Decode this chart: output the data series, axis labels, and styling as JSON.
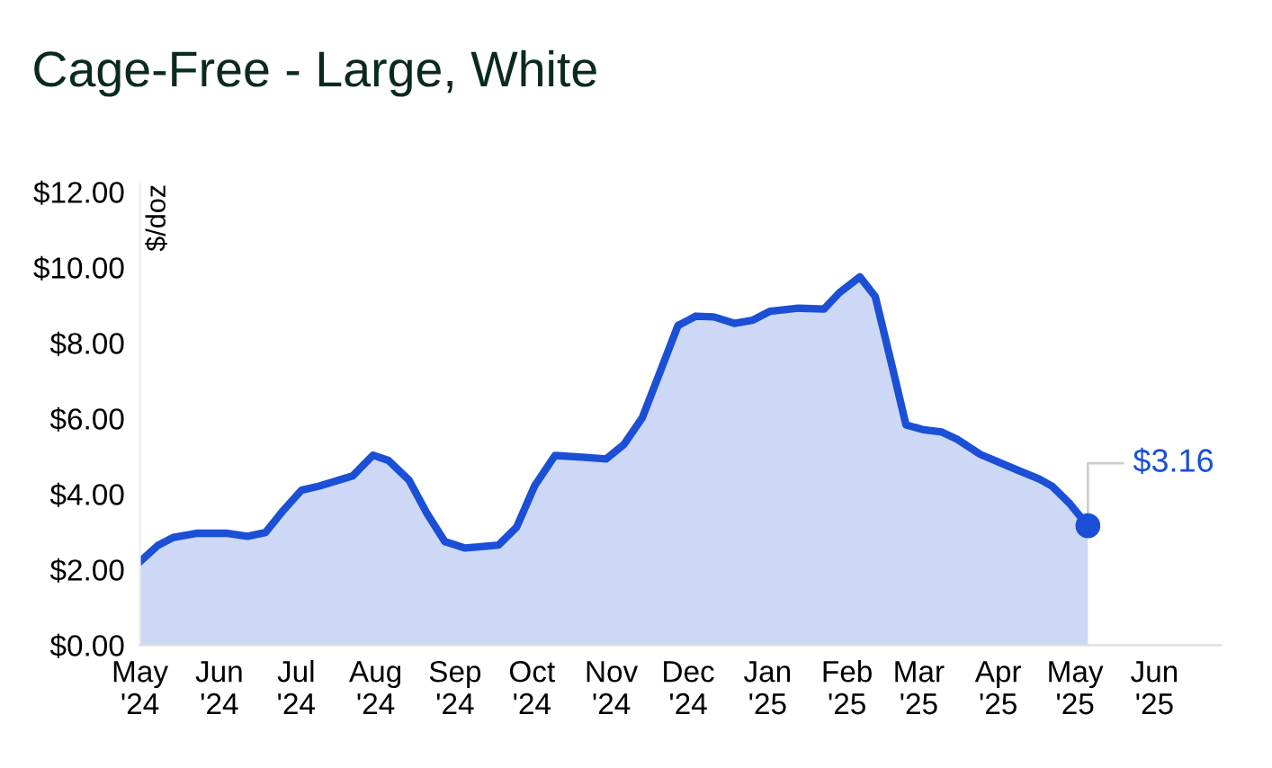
{
  "chart_data": {
    "type": "area",
    "title": "Cage-Free - Large, White",
    "ylabel": "$/doz",
    "x": [
      "2024-05-01",
      "2024-05-08",
      "2024-05-14",
      "2024-05-23",
      "2024-06-04",
      "2024-06-12",
      "2024-06-19",
      "2024-06-26",
      "2024-07-03",
      "2024-07-10",
      "2024-07-23",
      "2024-07-31",
      "2024-08-06",
      "2024-08-14",
      "2024-08-21",
      "2024-08-28",
      "2024-09-05",
      "2024-09-18",
      "2024-09-25",
      "2024-10-02",
      "2024-10-10",
      "2024-10-22",
      "2024-10-30",
      "2024-11-06",
      "2024-11-13",
      "2024-11-20",
      "2024-11-27",
      "2024-12-04",
      "2024-12-11",
      "2024-12-19",
      "2024-12-26",
      "2025-01-02",
      "2025-01-13",
      "2025-01-23",
      "2025-01-29",
      "2025-02-06",
      "2025-02-12",
      "2025-02-18",
      "2025-02-24",
      "2025-03-03",
      "2025-03-10",
      "2025-03-16",
      "2025-03-25",
      "2025-04-08",
      "2025-04-17",
      "2025-04-22",
      "2025-04-29",
      "2025-05-06"
    ],
    "series": [
      {
        "color": "#1a4fd6",
        "values": [
          2.21,
          2.64,
          2.85,
          2.96,
          2.96,
          2.88,
          2.98,
          3.57,
          4.1,
          4.21,
          4.48,
          5.03,
          4.89,
          4.37,
          3.49,
          2.74,
          2.57,
          2.65,
          3.12,
          4.21,
          5.02,
          4.97,
          4.93,
          5.32,
          6.01,
          7.23,
          8.46,
          8.71,
          8.69,
          8.52,
          8.6,
          8.84,
          8.92,
          8.9,
          9.33,
          9.75,
          9.23,
          7.55,
          5.83,
          5.7,
          5.64,
          5.45,
          5.05,
          4.65,
          4.4,
          4.21,
          3.74,
          3.16
        ]
      },
      {
        "type": "scatter",
        "color": "#1a4fd6",
        "x": [
          "2025-05-06"
        ],
        "values": [
          3.16
        ],
        "marker": "circle"
      }
    ],
    "annotations": [
      {
        "text": "$3.16",
        "x": "2025-05-06",
        "y": 3.16
      }
    ],
    "xlim": [
      "2024-05-01",
      "2025-06-27"
    ],
    "ylim": [
      0,
      12.2
    ],
    "xticks": [
      {
        "value": "2024-05-01",
        "label": "May\n'24"
      },
      {
        "value": "2024-06-01",
        "label": "Jun\n'24"
      },
      {
        "value": "2024-07-01",
        "label": "Jul\n'24"
      },
      {
        "value": "2024-08-01",
        "label": "Aug\n'24"
      },
      {
        "value": "2024-09-01",
        "label": "Sep\n'24"
      },
      {
        "value": "2024-10-01",
        "label": "Oct\n'24"
      },
      {
        "value": "2024-11-01",
        "label": "Nov\n'24"
      },
      {
        "value": "2024-12-01",
        "label": "Dec\n'24"
      },
      {
        "value": "2025-01-01",
        "label": "Jan\n'25"
      },
      {
        "value": "2025-02-01",
        "label": "Feb\n'25"
      },
      {
        "value": "2025-03-01",
        "label": "Mar\n'25"
      },
      {
        "value": "2025-04-01",
        "label": "Apr\n'25"
      },
      {
        "value": "2025-05-01",
        "label": "May\n'25"
      },
      {
        "value": "2025-06-01",
        "label": "Jun\n'25"
      }
    ],
    "yticks": [
      {
        "value": 0,
        "label": "$0.00"
      },
      {
        "value": 2,
        "label": "$2.00"
      },
      {
        "value": 4,
        "label": "$4.00"
      },
      {
        "value": 6,
        "label": "$6.00"
      },
      {
        "value": 8,
        "label": "$8.00"
      },
      {
        "value": 10,
        "label": "$10.00"
      },
      {
        "value": 12,
        "label": "$12.00"
      }
    ],
    "grid": false,
    "legend": false,
    "marker": "none",
    "line_style": "solid"
  }
}
